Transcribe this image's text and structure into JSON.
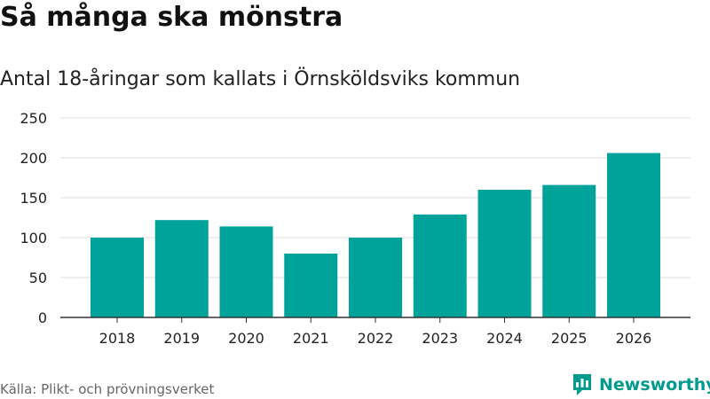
{
  "header": {
    "title": "Så många ska mönstra",
    "subtitle": "Antal 18-åringar som kallats i Örnsköldsviks kommun"
  },
  "footer": {
    "source": "Källa: Plikt- och prövningsverket",
    "brand": "Newsworthy",
    "brand_icon": "bar-chart-logo-icon"
  },
  "colors": {
    "bar": "#00a39a",
    "grid": "#dddddd",
    "axis": "#333333",
    "brand": "#009a8e"
  },
  "chart_data": {
    "type": "bar",
    "title": "Så många ska mönstra",
    "subtitle": "Antal 18-åringar som kallats i Örnsköldsviks kommun",
    "categories": [
      "2018",
      "2019",
      "2020",
      "2021",
      "2022",
      "2023",
      "2024",
      "2025",
      "2026"
    ],
    "values": [
      100,
      122,
      114,
      80,
      100,
      129,
      160,
      166,
      206
    ],
    "xlabel": "",
    "ylabel": "",
    "ylim": [
      0,
      250
    ],
    "yticks": [
      "0",
      "50",
      "100",
      "150",
      "200",
      "250"
    ],
    "grid": true
  }
}
